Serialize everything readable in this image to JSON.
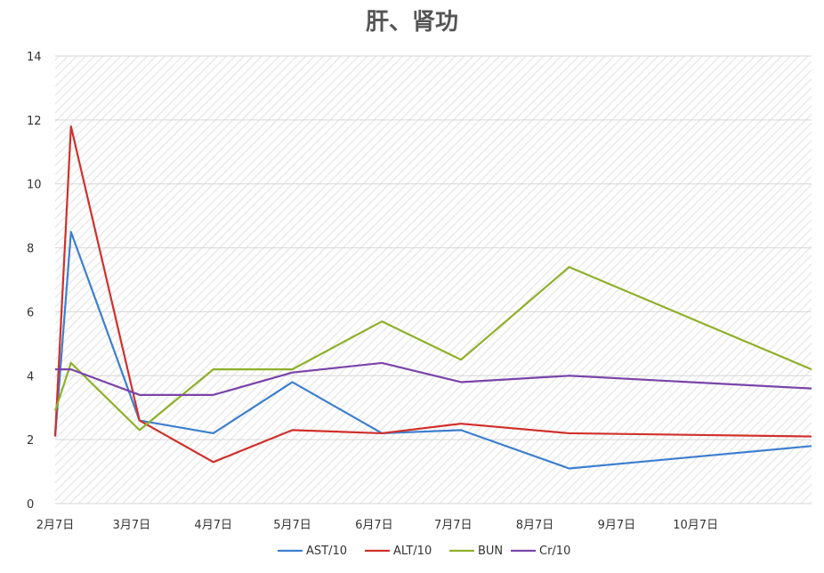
{
  "chart_data": {
    "type": "line",
    "title": "肝、肾功",
    "xlabel": "",
    "ylabel": "",
    "ylim": [
      0,
      14
    ],
    "yticks": [
      0,
      2,
      4,
      6,
      8,
      10,
      12,
      14
    ],
    "xlim": [
      "2月7日",
      "11月20日"
    ],
    "xticks": [
      "2月7日",
      "3月7日",
      "4月7日",
      "5月7日",
      "6月7日",
      "7月7日",
      "8月7日",
      "9月7日",
      "10月7日"
    ],
    "x": [
      "2月7日",
      "2月13日",
      "3月10日",
      "4月7日",
      "5月7日",
      "6月10日",
      "7月10日",
      "8月20日",
      "11月20日"
    ],
    "series": [
      {
        "name": "AST/10",
        "color": "#3d7fcf",
        "values": [
          2.1,
          8.5,
          2.6,
          2.2,
          3.8,
          2.2,
          2.3,
          1.1,
          1.8
        ]
      },
      {
        "name": "ALT/10",
        "color": "#d0302b",
        "values": [
          2.1,
          11.8,
          2.6,
          1.3,
          2.3,
          2.2,
          2.5,
          2.2,
          2.1
        ]
      },
      {
        "name": "BUN",
        "color": "#8fb02a",
        "values": [
          2.9,
          4.4,
          2.3,
          4.2,
          4.2,
          5.7,
          4.5,
          7.4,
          4.2
        ]
      },
      {
        "name": "Cr/10",
        "color": "#7a44a9",
        "values": [
          4.2,
          4.2,
          3.4,
          3.4,
          4.1,
          4.4,
          3.8,
          4.0,
          3.6
        ]
      }
    ],
    "grid": true,
    "legend": "bottom"
  }
}
